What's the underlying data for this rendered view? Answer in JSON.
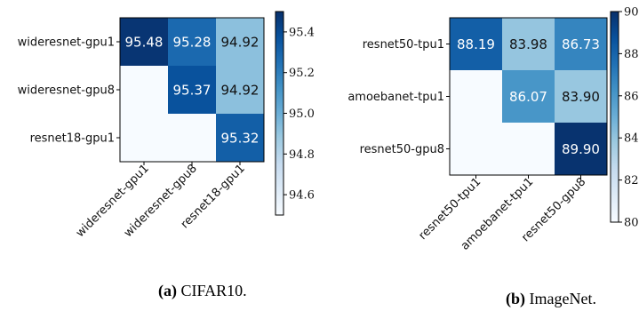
{
  "chart_data": [
    {
      "type": "heatmap",
      "caption_label": "(a)",
      "caption_text": " CIFAR10.",
      "rows": [
        "wideresnet-gpu1",
        "wideresnet-gpu8",
        "resnet18-gpu1"
      ],
      "cols": [
        "wideresnet-gpu1",
        "wideresnet-gpu8",
        "resnet18-gpu1"
      ],
      "values": [
        [
          95.48,
          95.28,
          94.92
        ],
        [
          null,
          95.37,
          94.92
        ],
        [
          null,
          null,
          95.32
        ]
      ],
      "colorbar": {
        "min": 94.5,
        "max": 95.5,
        "ticks": [
          94.6,
          94.8,
          95.0,
          95.2,
          95.4
        ],
        "tick_labels": [
          "94.6",
          "94.8",
          "95.0",
          "95.2",
          "95.4"
        ]
      },
      "colormap": "Blues"
    },
    {
      "type": "heatmap",
      "caption_label": "(b)",
      "caption_text": " ImageNet.",
      "rows": [
        "resnet50-tpu1",
        "amoebanet-tpu1",
        "resnet50-gpu8"
      ],
      "cols": [
        "resnet50-tpu1",
        "amoebanet-tpu1",
        "resnet50-gpu8"
      ],
      "values": [
        [
          88.19,
          83.98,
          86.73
        ],
        [
          null,
          86.07,
          83.9
        ],
        [
          null,
          null,
          89.9
        ]
      ],
      "colorbar": {
        "min": 80,
        "max": 90,
        "ticks": [
          80,
          82,
          84,
          86,
          88,
          90
        ],
        "tick_labels": [
          "80",
          "82",
          "84",
          "86",
          "88",
          "90"
        ]
      },
      "colormap": "Blues"
    }
  ]
}
